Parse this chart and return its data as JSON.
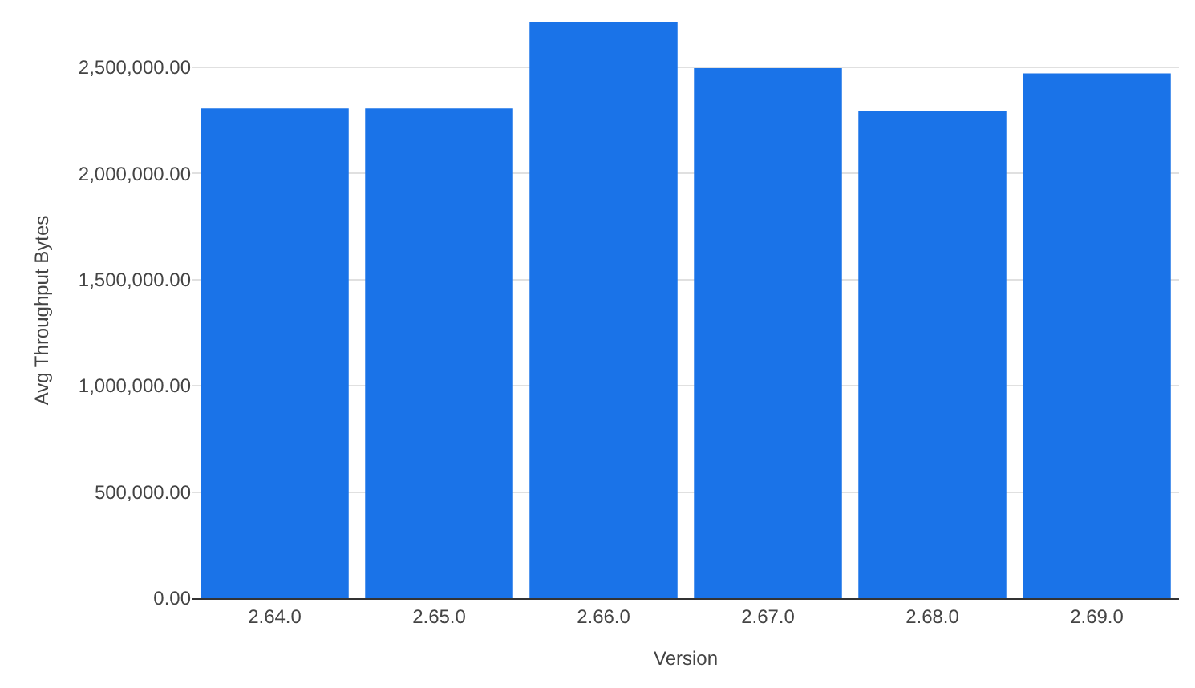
{
  "chart_data": {
    "type": "bar",
    "xlabel": "Version",
    "ylabel": "Avg Throughput Bytes",
    "categories": [
      "2.64.0",
      "2.65.0",
      "2.66.0",
      "2.67.0",
      "2.68.0",
      "2.69.0"
    ],
    "values": [
      2305000,
      2305000,
      2710000,
      2495000,
      2295000,
      2470000
    ],
    "color": "#1a73e8",
    "ylim": [
      0,
      2710000
    ],
    "yticks": [
      {
        "value": 0,
        "label": "0.00"
      },
      {
        "value": 500000,
        "label": "500,000.00"
      },
      {
        "value": 1000000,
        "label": "1,000,000.00"
      },
      {
        "value": 1500000,
        "label": "1,500,000.00"
      },
      {
        "value": 2000000,
        "label": "2,000,000.00"
      },
      {
        "value": 2500000,
        "label": "2,500,000.00"
      }
    ],
    "grid": "y",
    "legend": false
  }
}
